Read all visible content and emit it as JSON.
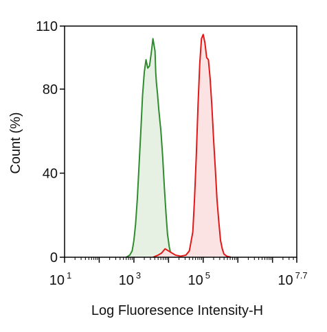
{
  "chart_data": {
    "type": "area",
    "xlabel": "Log Fluoresence Intensity-H",
    "ylabel": "Count  (%)",
    "x_scale": "log10",
    "xlim_exponent": [
      1,
      7.7
    ],
    "ylim": [
      0,
      110
    ],
    "x_ticks": [
      {
        "base": "10",
        "exp": "1",
        "value": 1
      },
      {
        "base": "10",
        "exp": "3",
        "value": 3
      },
      {
        "base": "10",
        "exp": "5",
        "value": 5
      },
      {
        "base": "10",
        "exp": "7.7",
        "value": 7.7
      }
    ],
    "y_ticks": [
      {
        "label": "0",
        "value": 0
      },
      {
        "label": "40",
        "value": 40
      },
      {
        "label": "80",
        "value": 80
      },
      {
        "label": "110",
        "value": 110
      }
    ],
    "grid": false,
    "legend": "none",
    "series": [
      {
        "color": "#2e8b2e",
        "fill": "#e6f1e3",
        "x_log10": [
          2.78,
          2.88,
          2.95,
          3.0,
          3.05,
          3.1,
          3.15,
          3.2,
          3.25,
          3.3,
          3.35,
          3.4,
          3.45,
          3.5,
          3.55,
          3.58,
          3.61,
          3.63,
          3.65,
          3.68,
          3.72,
          3.78,
          3.83,
          3.88,
          3.93,
          3.97,
          4.02,
          4.06,
          4.12,
          4.2
        ],
        "y": [
          0,
          1,
          3,
          8,
          16,
          28,
          44,
          60,
          77,
          88,
          94,
          90,
          91,
          97,
          104,
          101,
          98,
          88,
          83,
          78,
          70,
          60,
          48,
          33,
          20,
          11,
          5,
          2,
          0.5,
          0
        ]
      },
      {
        "color": "#e01818",
        "fill": "#fbe3e3",
        "x_log10": [
          3.55,
          3.7,
          3.8,
          3.9,
          4.0,
          4.1,
          4.2,
          4.35,
          4.5,
          4.6,
          4.7,
          4.75,
          4.8,
          4.85,
          4.9,
          4.95,
          5.0,
          5.05,
          5.1,
          5.15,
          5.2,
          5.25,
          5.3,
          5.35,
          5.4,
          5.45,
          5.5,
          5.55,
          5.6,
          5.68,
          5.8
        ],
        "y": [
          0,
          1,
          2,
          4,
          3,
          2,
          1,
          0.5,
          1,
          3,
          12,
          28,
          48,
          72,
          92,
          104,
          106,
          102,
          95,
          94,
          85,
          72,
          56,
          42,
          27,
          17,
          8,
          4,
          1.5,
          0.5,
          0
        ]
      }
    ]
  }
}
